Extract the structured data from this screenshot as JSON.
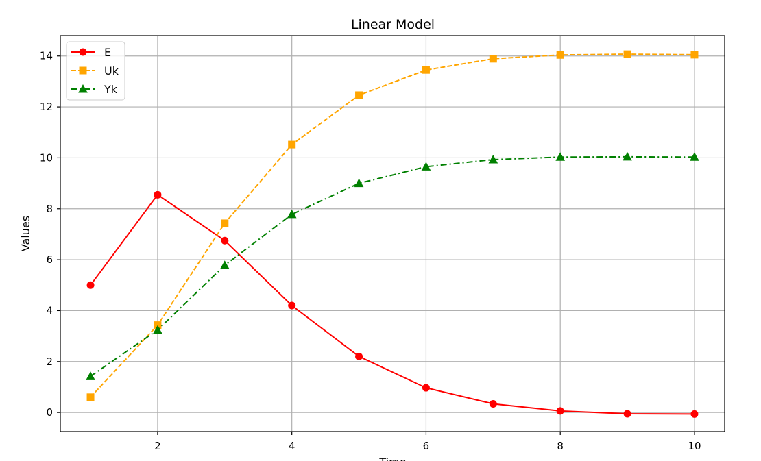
{
  "chart_data": {
    "type": "line",
    "title": "Linear Model",
    "xlabel": "Time",
    "ylabel": "Values",
    "xlim": [
      0.55,
      10.45
    ],
    "ylim": [
      -0.75,
      14.8
    ],
    "xticks": [
      2,
      4,
      6,
      8,
      10
    ],
    "yticks": [
      0,
      2,
      4,
      6,
      8,
      10,
      12,
      14
    ],
    "grid": true,
    "legend_position": "top-left",
    "x": [
      1,
      2,
      3,
      4,
      5,
      6,
      7,
      8,
      9,
      10
    ],
    "series": [
      {
        "name": "E",
        "color": "#ff0000",
        "line_style": "solid",
        "marker": "circle",
        "values": [
          5.0,
          8.55,
          6.75,
          4.2,
          2.2,
          0.97,
          0.34,
          0.06,
          -0.05,
          -0.06
        ]
      },
      {
        "name": "Uk",
        "color": "#ffa500",
        "line_style": "dashed",
        "marker": "square",
        "values": [
          0.6,
          3.43,
          7.43,
          10.52,
          12.46,
          13.45,
          13.89,
          14.04,
          14.07,
          14.05
        ]
      },
      {
        "name": "Yk",
        "color": "#008000",
        "line_style": "dashdot",
        "marker": "triangle",
        "values": [
          1.42,
          3.24,
          5.78,
          7.78,
          9.0,
          9.65,
          9.93,
          10.03,
          10.04,
          10.03
        ]
      }
    ]
  }
}
